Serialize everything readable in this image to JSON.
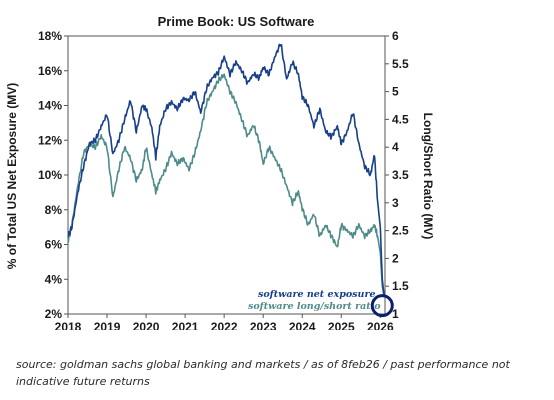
{
  "chart_data": {
    "type": "line",
    "title": "Prime Book: US Software",
    "ylabel": "% of Total US Net Exposure (MV)",
    "y2label": "Long/Short Ratio (MV)",
    "xlim": [
      2018,
      2026.12
    ],
    "ylim": [
      2,
      18
    ],
    "y2lim": [
      1,
      6
    ],
    "x_ticks": [
      {
        "value": 2018,
        "label": "2018"
      },
      {
        "value": 2019,
        "label": "2019"
      },
      {
        "value": 2020,
        "label": "2020"
      },
      {
        "value": 2021,
        "label": "2021"
      },
      {
        "value": 2022,
        "label": "2022"
      },
      {
        "value": 2023,
        "label": "2023"
      },
      {
        "value": 2024,
        "label": "2024"
      },
      {
        "value": 2025,
        "label": "2025"
      },
      {
        "value": 2026,
        "label": "2026"
      }
    ],
    "y_ticks": [
      {
        "value": 2,
        "label": "2%"
      },
      {
        "value": 4,
        "label": "4%"
      },
      {
        "value": 6,
        "label": "6%"
      },
      {
        "value": 8,
        "label": "8%"
      },
      {
        "value": 10,
        "label": "10%"
      },
      {
        "value": 12,
        "label": "12%"
      },
      {
        "value": 14,
        "label": "14%"
      },
      {
        "value": 16,
        "label": "16%"
      },
      {
        "value": 18,
        "label": "18%"
      }
    ],
    "y2_ticks": [
      {
        "value": 1,
        "label": "1"
      },
      {
        "value": 1.5,
        "label": "1.5"
      },
      {
        "value": 2,
        "label": "2"
      },
      {
        "value": 2.5,
        "label": "2.5"
      },
      {
        "value": 3,
        "label": "3"
      },
      {
        "value": 3.5,
        "label": "3.5"
      },
      {
        "value": 4,
        "label": "4"
      },
      {
        "value": 4.5,
        "label": "4.5"
      },
      {
        "value": 5,
        "label": "5"
      },
      {
        "value": 5.5,
        "label": "5.5"
      },
      {
        "value": 6,
        "label": "6"
      }
    ],
    "grid": false,
    "legend_position": "bottom-right",
    "series": [
      {
        "name": "software net exposure",
        "axis": "left",
        "color": "#173f8a",
        "x": [
          2018.0,
          2018.1,
          2018.25,
          2018.4,
          2018.55,
          2018.7,
          2018.85,
          2019.0,
          2019.15,
          2019.3,
          2019.45,
          2019.6,
          2019.75,
          2019.9,
          2020.0,
          2020.15,
          2020.25,
          2020.35,
          2020.5,
          2020.65,
          2020.8,
          2020.95,
          2021.1,
          2021.25,
          2021.4,
          2021.55,
          2021.7,
          2021.85,
          2022.0,
          2022.15,
          2022.3,
          2022.45,
          2022.6,
          2022.75,
          2022.9,
          2023.0,
          2023.15,
          2023.3,
          2023.45,
          2023.6,
          2023.75,
          2023.9,
          2024.0,
          2024.15,
          2024.3,
          2024.45,
          2024.6,
          2024.75,
          2024.9,
          2025.0,
          2025.15,
          2025.3,
          2025.45,
          2025.6,
          2025.75,
          2025.85,
          2025.93,
          2026.0,
          2026.05,
          2026.1
        ],
        "values": [
          6.5,
          7.0,
          9.0,
          10.5,
          11.8,
          12.0,
          12.8,
          13.5,
          11.2,
          12.0,
          13.2,
          14.3,
          12.5,
          14.0,
          13.8,
          12.7,
          11.0,
          12.8,
          13.8,
          14.2,
          13.8,
          14.4,
          14.3,
          14.8,
          13.6,
          15.0,
          15.6,
          15.9,
          16.8,
          15.8,
          16.5,
          16.0,
          15.3,
          15.8,
          15.6,
          16.2,
          15.8,
          16.8,
          17.6,
          15.5,
          16.5,
          15.8,
          14.5,
          14.0,
          12.8,
          13.8,
          12.5,
          12.2,
          12.8,
          11.8,
          12.5,
          13.6,
          11.8,
          10.5,
          10.0,
          11.2,
          8.5,
          7.0,
          4.0,
          3.0
        ]
      },
      {
        "name": "software long/short ratio",
        "axis": "right",
        "color": "#4e8c8a",
        "x": [
          2018.0,
          2018.1,
          2018.25,
          2018.4,
          2018.55,
          2018.7,
          2018.85,
          2019.0,
          2019.15,
          2019.3,
          2019.45,
          2019.6,
          2019.75,
          2019.9,
          2020.0,
          2020.15,
          2020.25,
          2020.35,
          2020.5,
          2020.65,
          2020.8,
          2020.95,
          2021.1,
          2021.25,
          2021.4,
          2021.55,
          2021.7,
          2021.85,
          2022.0,
          2022.15,
          2022.3,
          2022.45,
          2022.6,
          2022.75,
          2022.9,
          2023.0,
          2023.15,
          2023.3,
          2023.45,
          2023.6,
          2023.75,
          2023.9,
          2024.0,
          2024.15,
          2024.3,
          2024.45,
          2024.6,
          2024.75,
          2024.9,
          2025.0,
          2025.15,
          2025.3,
          2025.45,
          2025.6,
          2025.75,
          2025.85,
          2025.93,
          2026.0,
          2026.05,
          2026.1
        ],
        "values": [
          2.3,
          2.6,
          3.3,
          3.9,
          4.05,
          4.0,
          4.2,
          4.0,
          3.1,
          3.6,
          4.0,
          3.8,
          3.4,
          3.6,
          4.0,
          3.5,
          3.2,
          3.4,
          3.6,
          3.9,
          3.7,
          3.8,
          3.6,
          3.9,
          4.3,
          4.8,
          5.0,
          5.2,
          5.3,
          5.0,
          4.8,
          4.5,
          4.2,
          4.4,
          4.1,
          3.7,
          4.0,
          3.8,
          3.6,
          3.3,
          3.0,
          3.2,
          2.9,
          2.6,
          2.8,
          2.4,
          2.6,
          2.4,
          2.2,
          2.6,
          2.5,
          2.4,
          2.6,
          2.4,
          2.5,
          2.6,
          2.4,
          2.1,
          1.5,
          1.3
        ]
      }
    ],
    "highlight": {
      "x": 2026.05,
      "y2": 1.15
    }
  },
  "caption": "source: goldman sachs global banking and markets / as of 8feb26 / past performance not indicative future returns"
}
